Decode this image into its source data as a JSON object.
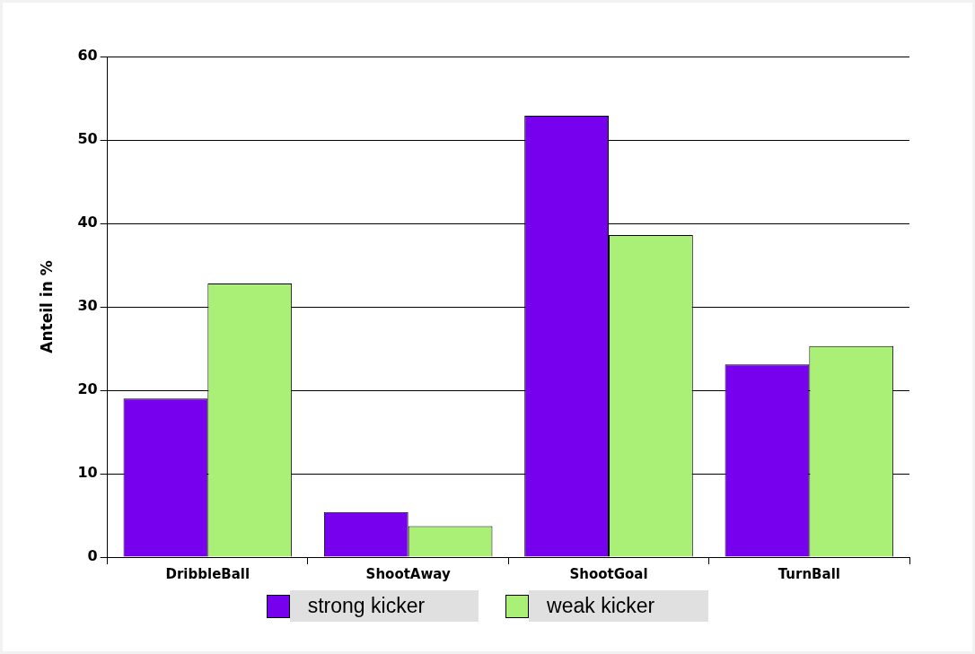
{
  "chart_data": {
    "type": "bar",
    "ylabel": "Anteil in %",
    "categories": [
      "DribbleBall",
      "ShootAway",
      "ShootGoal",
      "TurnBall"
    ],
    "series": [
      {
        "name": "strong kicker",
        "color": "#7700ee",
        "values": [
          19.0,
          5.4,
          52.9,
          23.1
        ]
      },
      {
        "name": "weak kicker",
        "color": "#aaf077",
        "values": [
          32.8,
          3.7,
          38.6,
          25.3
        ]
      }
    ],
    "ylim": [
      0,
      60
    ],
    "yticks": [
      0,
      10,
      20,
      30,
      40,
      50,
      60
    ],
    "grid": "y",
    "legend": "bottom"
  }
}
